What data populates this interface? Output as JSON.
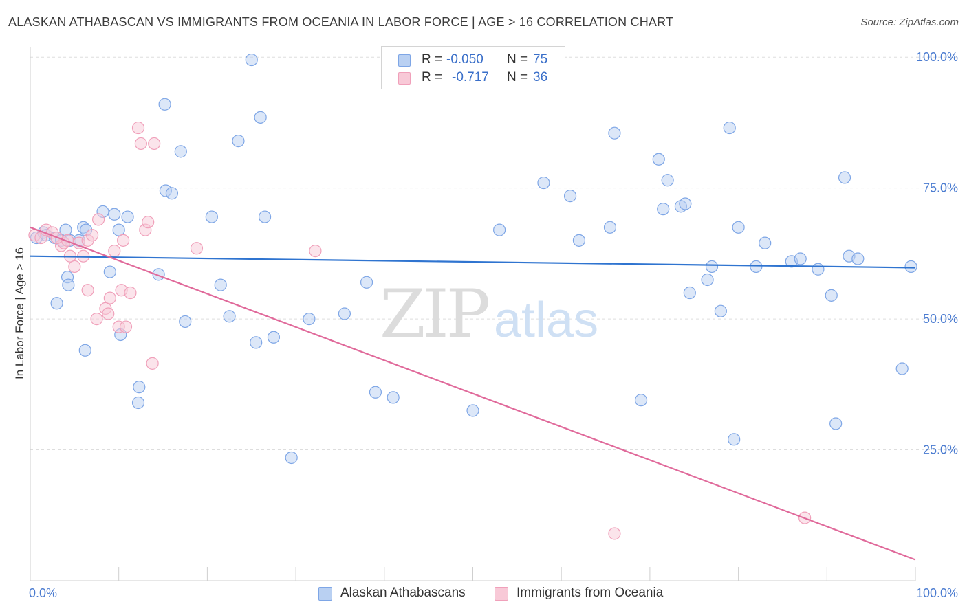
{
  "title": "ALASKAN ATHABASCAN VS IMMIGRANTS FROM OCEANIA IN LABOR FORCE | AGE > 16 CORRELATION CHART",
  "source": "Source: ZipAtlas.com",
  "watermark": {
    "zip": "ZIP",
    "atlas": "atlas"
  },
  "legend": {
    "rows": [
      {
        "r_label": "R =",
        "r_value": "-0.050",
        "n_label": "N =",
        "n_value": "75"
      },
      {
        "r_label": "R =",
        "r_value": "-0.717",
        "n_label": "N =",
        "n_value": "36"
      }
    ]
  },
  "chart_data": {
    "type": "scatter",
    "title": "ALASKAN ATHABASCAN VS IMMIGRANTS FROM OCEANIA IN LABOR FORCE | AGE > 16 CORRELATION CHART",
    "xlabel": "",
    "ylabel": "In Labor Force | Age > 16",
    "xlim": [
      0,
      100
    ],
    "ylim": [
      0,
      102
    ],
    "x_tick_labels": [
      {
        "value": 0,
        "label": "0.0%"
      },
      {
        "value": 100,
        "label": "100.0%"
      }
    ],
    "y_tick_labels": [
      {
        "value": 25,
        "label": "25.0%"
      },
      {
        "value": 50,
        "label": "50.0%"
      },
      {
        "value": 75,
        "label": "75.0%"
      },
      {
        "value": 100,
        "label": "100.0%"
      }
    ],
    "y_grid": [
      25,
      50,
      75,
      100
    ],
    "series": [
      {
        "name": "Alaskan Athabascans",
        "color": "#7ea6e6",
        "fill": "#b9d0f2",
        "line_color": "#2f74d0",
        "trend": {
          "x": [
            0,
            100
          ],
          "y": [
            62.0,
            59.8
          ]
        },
        "points": [
          [
            0.7,
            65.5
          ],
          [
            1.5,
            66.5
          ],
          [
            1.8,
            66
          ],
          [
            2.8,
            65.5
          ],
          [
            4,
            67
          ],
          [
            4.5,
            65
          ],
          [
            5.5,
            65
          ],
          [
            6,
            67.5
          ],
          [
            6.3,
            67
          ],
          [
            8.2,
            70.5
          ],
          [
            9,
            59
          ],
          [
            9.5,
            70
          ],
          [
            10,
            67
          ],
          [
            10.2,
            47
          ],
          [
            11,
            69.5
          ],
          [
            12.3,
            37
          ],
          [
            12.2,
            34
          ],
          [
            14.5,
            58.5
          ],
          [
            15.2,
            91
          ],
          [
            15.3,
            74.5
          ],
          [
            16,
            74
          ],
          [
            17,
            82
          ],
          [
            17.5,
            49.5
          ],
          [
            20.5,
            69.5
          ],
          [
            21.5,
            56.5
          ],
          [
            22.5,
            50.5
          ],
          [
            23.5,
            84
          ],
          [
            25,
            99.5
          ],
          [
            25.5,
            45.5
          ],
          [
            26,
            88.5
          ],
          [
            26.5,
            69.5
          ],
          [
            27.5,
            46.5
          ],
          [
            29.5,
            23.5
          ],
          [
            31.5,
            50
          ],
          [
            35.5,
            51
          ],
          [
            38,
            57
          ],
          [
            39,
            36
          ],
          [
            41,
            35
          ],
          [
            50,
            32.5
          ],
          [
            53,
            67
          ],
          [
            58,
            76
          ],
          [
            61,
            73.5
          ],
          [
            62,
            65
          ],
          [
            65.5,
            67.5
          ],
          [
            66,
            85.5
          ],
          [
            69,
            34.5
          ],
          [
            71,
            80.5
          ],
          [
            72,
            76.5
          ],
          [
            71.5,
            71
          ],
          [
            73.5,
            71.5
          ],
          [
            74,
            72
          ],
          [
            74.5,
            55
          ],
          [
            76.5,
            57.5
          ],
          [
            77,
            60
          ],
          [
            78,
            51.5
          ],
          [
            79,
            86.5
          ],
          [
            79.5,
            27
          ],
          [
            80,
            67.5
          ],
          [
            82,
            60
          ],
          [
            83,
            64.5
          ],
          [
            86,
            61
          ],
          [
            87,
            61.5
          ],
          [
            89,
            59.5
          ],
          [
            90.5,
            54.5
          ],
          [
            91,
            30
          ],
          [
            92,
            77
          ],
          [
            92.5,
            62
          ],
          [
            93.5,
            61.5
          ],
          [
            98.5,
            40.5
          ],
          [
            99.5,
            60
          ],
          [
            3,
            53
          ],
          [
            4.2,
            58
          ],
          [
            4.3,
            56.5
          ],
          [
            6.2,
            44
          ],
          [
            3.5,
            65
          ]
        ]
      },
      {
        "name": "Immigrants from Oceania",
        "color": "#f0a0ba",
        "fill": "#f8c9d7",
        "line_color": "#e0699a",
        "trend": {
          "x": [
            0,
            100
          ],
          "y": [
            67.5,
            4.0
          ]
        },
        "points": [
          [
            0.5,
            66
          ],
          [
            1.2,
            65.5
          ],
          [
            1.8,
            67
          ],
          [
            2.5,
            66.5
          ],
          [
            3.5,
            64
          ],
          [
            3.8,
            64.5
          ],
          [
            4.2,
            65
          ],
          [
            4.5,
            62
          ],
          [
            5,
            60
          ],
          [
            5.5,
            64.5
          ],
          [
            6,
            62
          ],
          [
            6.5,
            65
          ],
          [
            6.5,
            55.5
          ],
          [
            7,
            66
          ],
          [
            7.5,
            50
          ],
          [
            7.7,
            69
          ],
          [
            8.5,
            52
          ],
          [
            8.8,
            51
          ],
          [
            9,
            54
          ],
          [
            9.5,
            63
          ],
          [
            10,
            48.5
          ],
          [
            10.3,
            55.5
          ],
          [
            10.5,
            65
          ],
          [
            10.8,
            48.5
          ],
          [
            11.3,
            55
          ],
          [
            12.2,
            86.5
          ],
          [
            12.5,
            83.5
          ],
          [
            13,
            67
          ],
          [
            13.3,
            68.5
          ],
          [
            14,
            83.5
          ],
          [
            13.8,
            41.5
          ],
          [
            18.8,
            63.5
          ],
          [
            32.2,
            63
          ],
          [
            66,
            9
          ],
          [
            87.5,
            12
          ],
          [
            3,
            65.5
          ]
        ]
      }
    ]
  }
}
